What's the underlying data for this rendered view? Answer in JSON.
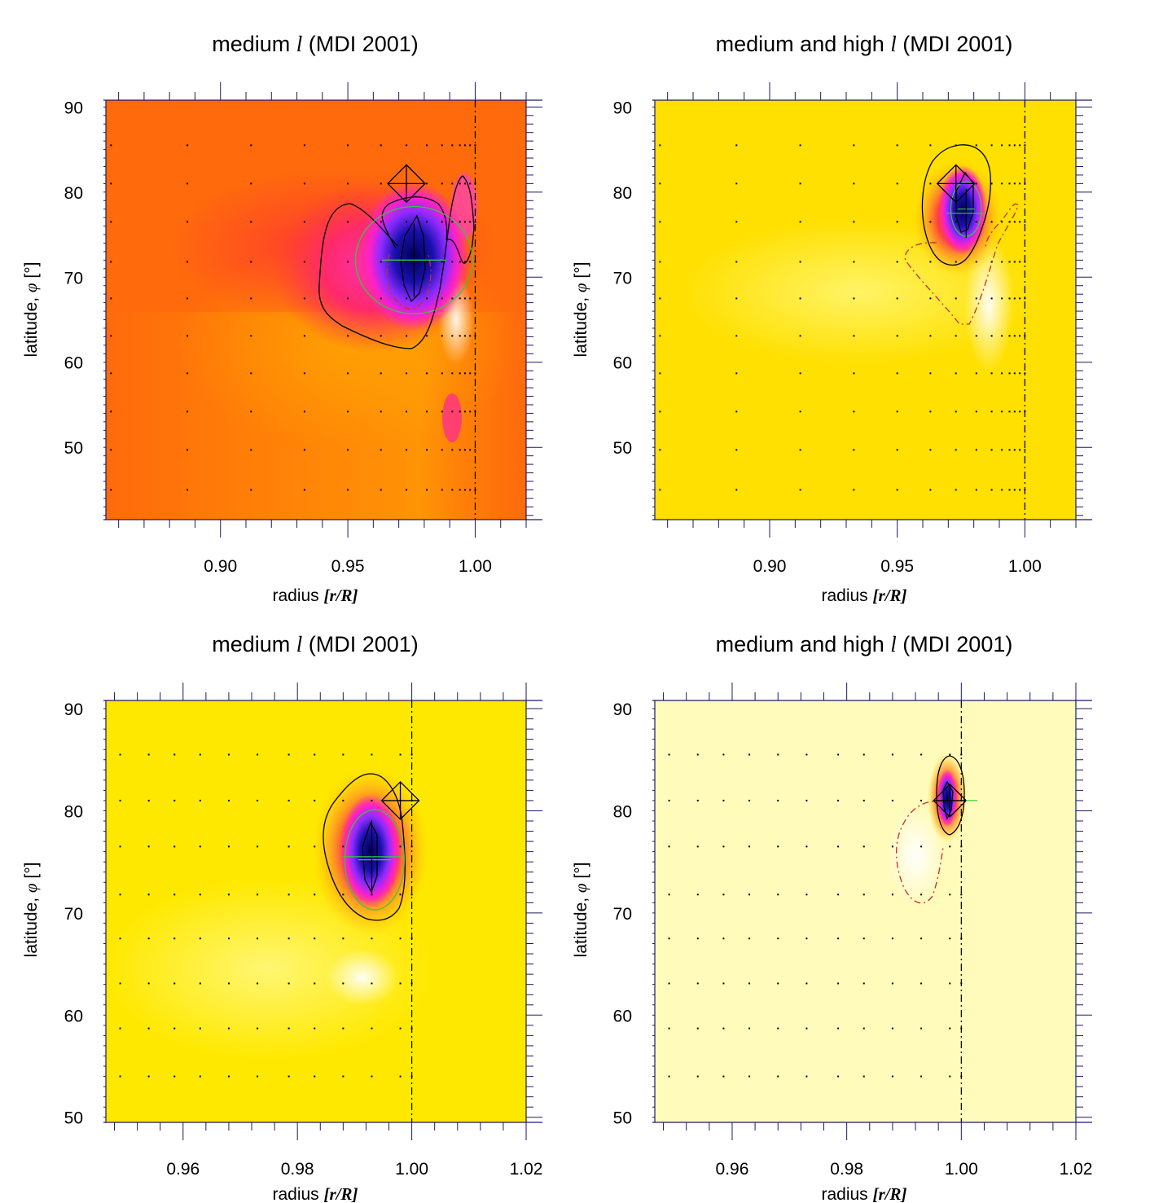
{
  "figure": {
    "ylabel_text": "latitude, ",
    "ylabel_symbol": "φ",
    "ylabel_unit": " [°]",
    "xlabel_text": "radius ",
    "xlabel_unit": "[r/R]"
  },
  "chart_data": [
    {
      "type": "heatmap",
      "panel": "top-left",
      "title_prefix": "medium ",
      "title_symbol": "l",
      "title_suffix": " (MDI 2001)",
      "xlabel": "radius [r/R]",
      "ylabel": "latitude, φ [°]",
      "xlim": [
        0.855,
        1.02
      ],
      "ylim": [
        41.5,
        90.8
      ],
      "xticks": [
        0.9,
        0.95,
        1.0
      ],
      "xtick_labels": [
        "0.90",
        "0.95",
        "1.00"
      ],
      "yticks": [
        50,
        60,
        70,
        80,
        90
      ],
      "ytick_labels": [
        "50",
        "60",
        "70",
        "80",
        "90"
      ],
      "background_color": "#ff6a0c",
      "peak_location": {
        "r": 0.976,
        "lat": 72.0
      },
      "target_location": {
        "r": 0.973,
        "lat": 81.0
      },
      "green_circle": {
        "r": 0.976,
        "lat": 72.0,
        "dr": 0.023,
        "dlat": 6.3
      },
      "surface_r": 1.0,
      "grid_r": [
        0.857,
        0.887,
        0.912,
        0.933,
        0.95,
        0.963,
        0.973,
        0.981,
        0.987,
        0.991,
        0.994,
        0.996,
        0.998,
        1.0
      ],
      "grid_lat": [
        45,
        49.7,
        54.2,
        58.7,
        63.1,
        67.5,
        71.8,
        76.5,
        81,
        85.5
      ]
    },
    {
      "type": "heatmap",
      "panel": "top-right",
      "title_prefix": "medium and high ",
      "title_symbol": "l",
      "title_suffix": " (MDI 2001)",
      "xlabel": "radius [r/R]",
      "ylabel": "latitude, φ [°]",
      "xlim": [
        0.855,
        1.02
      ],
      "ylim": [
        41.5,
        90.8
      ],
      "xticks": [
        0.9,
        0.95,
        1.0
      ],
      "xtick_labels": [
        "0.90",
        "0.95",
        "1.00"
      ],
      "yticks": [
        50,
        60,
        70,
        80,
        90
      ],
      "ytick_labels": [
        "50",
        "60",
        "70",
        "80",
        "90"
      ],
      "background_color": "#ffe000",
      "peak_location": {
        "r": 0.977,
        "lat": 77.5
      },
      "target_location": {
        "r": 0.973,
        "lat": 81.0
      },
      "green_circle": {
        "r": 0.977,
        "lat": 78.0,
        "dr": 0.006,
        "dlat": 3.2
      },
      "surface_r": 1.0,
      "grid_r": [
        0.857,
        0.887,
        0.912,
        0.933,
        0.95,
        0.963,
        0.973,
        0.981,
        0.987,
        0.991,
        0.994,
        0.996,
        0.998,
        1.0
      ],
      "grid_lat": [
        45,
        49.7,
        54.2,
        58.7,
        63.1,
        67.5,
        71.8,
        76.5,
        81,
        85.5
      ]
    },
    {
      "type": "heatmap",
      "panel": "bottom-left",
      "title_prefix": "medium ",
      "title_symbol": "l",
      "title_suffix": " (MDI 2001)",
      "xlabel": "radius [r/R]",
      "ylabel": "latitude, φ [°]",
      "xlim": [
        0.9465,
        1.02
      ],
      "ylim": [
        49.5,
        90.8
      ],
      "xticks": [
        0.96,
        0.98,
        1.0,
        1.02
      ],
      "xtick_labels": [
        "0.96",
        "0.98",
        "1.00",
        "1.02"
      ],
      "yticks": [
        50,
        60,
        70,
        80,
        90
      ],
      "ytick_labels": [
        "50",
        "60",
        "70",
        "80",
        "90"
      ],
      "background_color": "#ffe800",
      "peak_location": {
        "r": 0.993,
        "lat": 75.5
      },
      "target_location": {
        "r": 0.998,
        "lat": 81.0
      },
      "green_circle": {
        "r": 0.9935,
        "lat": 75.2,
        "dr": 0.0052,
        "dlat": 4.9
      },
      "surface_r": 1.0,
      "grid_r": [
        0.949,
        0.954,
        0.9585,
        0.963,
        0.968,
        0.973,
        0.9785,
        0.983,
        0.988,
        0.993,
        0.998,
        1.0
      ],
      "grid_lat": [
        54,
        58.7,
        63.1,
        67.5,
        71.8,
        76.5,
        81,
        85.5
      ]
    },
    {
      "type": "heatmap",
      "panel": "bottom-right",
      "title_prefix": "medium and high ",
      "title_symbol": "l",
      "title_suffix": " (MDI 2001)",
      "xlabel": "radius [r/R]",
      "ylabel": "latitude, φ [°]",
      "xlim": [
        0.9465,
        1.02
      ],
      "ylim": [
        49.5,
        90.8
      ],
      "xticks": [
        0.96,
        0.98,
        1.0,
        1.02
      ],
      "xtick_labels": [
        "0.96",
        "0.98",
        "1.00",
        "1.02"
      ],
      "yticks": [
        50,
        60,
        70,
        80,
        90
      ],
      "ytick_labels": [
        "50",
        "60",
        "70",
        "80",
        "90"
      ],
      "background_color": "#fffbbb",
      "peak_location": {
        "r": 0.998,
        "lat": 81.0
      },
      "target_location": {
        "r": 0.998,
        "lat": 81.0
      },
      "green_circle": null,
      "surface_r": 1.0,
      "grid_r": [
        0.949,
        0.954,
        0.9585,
        0.963,
        0.968,
        0.973,
        0.9785,
        0.983,
        0.988,
        0.993,
        0.998,
        1.0
      ],
      "grid_lat": [
        54,
        58.7,
        63.1,
        67.5,
        71.8,
        76.5,
        81,
        85.5
      ]
    }
  ]
}
